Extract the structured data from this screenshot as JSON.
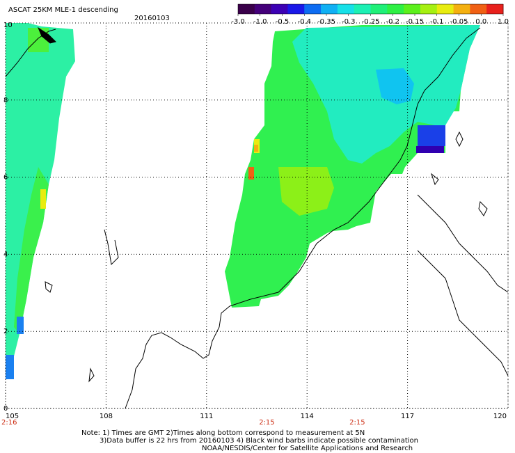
{
  "header": {
    "title": "ASCAT 25KM MLE-1 descending",
    "date": "20160103"
  },
  "colorbar": {
    "colors": [
      "#3a004a",
      "#44007a",
      "#3c00b4",
      "#1a18e8",
      "#0d6cf2",
      "#10b0f4",
      "#17e0e8",
      "#1cf0b4",
      "#1ff078",
      "#2ef044",
      "#5cf01c",
      "#a6f012",
      "#e8ec10",
      "#f4b010",
      "#f06014",
      "#e8201c"
    ],
    "tick_labels": [
      "-3.0",
      "-1.0",
      "-0.5",
      "-0.4",
      "-0.35",
      "-0.3",
      "-0.25",
      "-0.2",
      "-0.15",
      "-0.1",
      "-0.05",
      "0.0",
      "1.0"
    ]
  },
  "axes": {
    "x_ticks": [
      "105",
      "108",
      "111",
      "114",
      "117",
      "120"
    ],
    "y_ticks": [
      "0",
      "2",
      "4",
      "6",
      "8",
      "10"
    ],
    "x_range": [
      105,
      120
    ],
    "y_range": [
      0,
      10
    ]
  },
  "pass_times": [
    {
      "label": "2:16",
      "lon": 105.0
    },
    {
      "label": "2:15",
      "lon": 112.8
    },
    {
      "label": "2:15",
      "lon": 115.5
    }
  ],
  "footer": {
    "note_line1": "Note: 1) Times are GMT 2)Times along bottom correspond to measurement at 5N",
    "note_line2": "3)Data buffer is 22 hrs from 20160103 4) Black wind barbs indicate possible contamination",
    "note_line3": "NOAA/NESDIS/Center for Satellite Applications and Research"
  }
}
